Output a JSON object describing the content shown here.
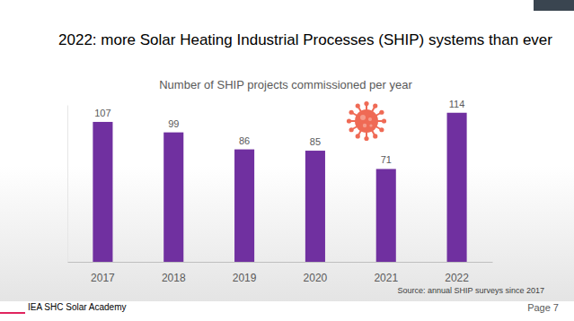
{
  "slide": {
    "title": "2022: more Solar Heating Industrial Processes (SHIP) systems than ever",
    "source": "Source: annual SHIP surveys since 2017",
    "footer": "IEA SHC Solar Academy",
    "page": "Page 7"
  },
  "chart_data": {
    "type": "bar",
    "title": "Number of SHIP projects commissioned per year",
    "categories": [
      "2017",
      "2018",
      "2019",
      "2020",
      "2021",
      "2022"
    ],
    "values": [
      107,
      99,
      86,
      85,
      71,
      114
    ],
    "color": "#7030a0",
    "ylim": [
      0,
      120
    ],
    "yticks": [
      0,
      120
    ],
    "data_labels": true,
    "tick_labels": "x",
    "grid": false
  }
}
